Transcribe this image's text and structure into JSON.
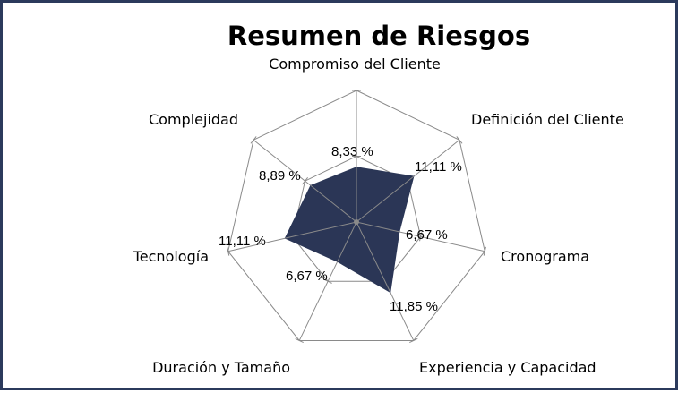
{
  "chart_data": {
    "type": "radar",
    "title": "Resumen de Riesgos",
    "categories": [
      "Compromiso del Cliente",
      "Definición del Cliente",
      "Cronograma",
      "Experiencia y Capacidad",
      "Duración y Tamaño",
      "Tecnología",
      "Complejidad"
    ],
    "values": [
      8.33,
      11.11,
      6.67,
      11.85,
      6.67,
      11.11,
      8.89
    ],
    "value_labels": [
      "8,33 %",
      "11,11 %",
      "6,67 %",
      "11,85 %",
      "6,67 %",
      "11,11 %",
      "8,89 %"
    ],
    "rmax": 20,
    "rings": 2,
    "grid": true,
    "legend": "none",
    "colors": {
      "fill": "#2b3656",
      "grid": "#8a8a8a",
      "frame": "#2b3a5c"
    }
  }
}
